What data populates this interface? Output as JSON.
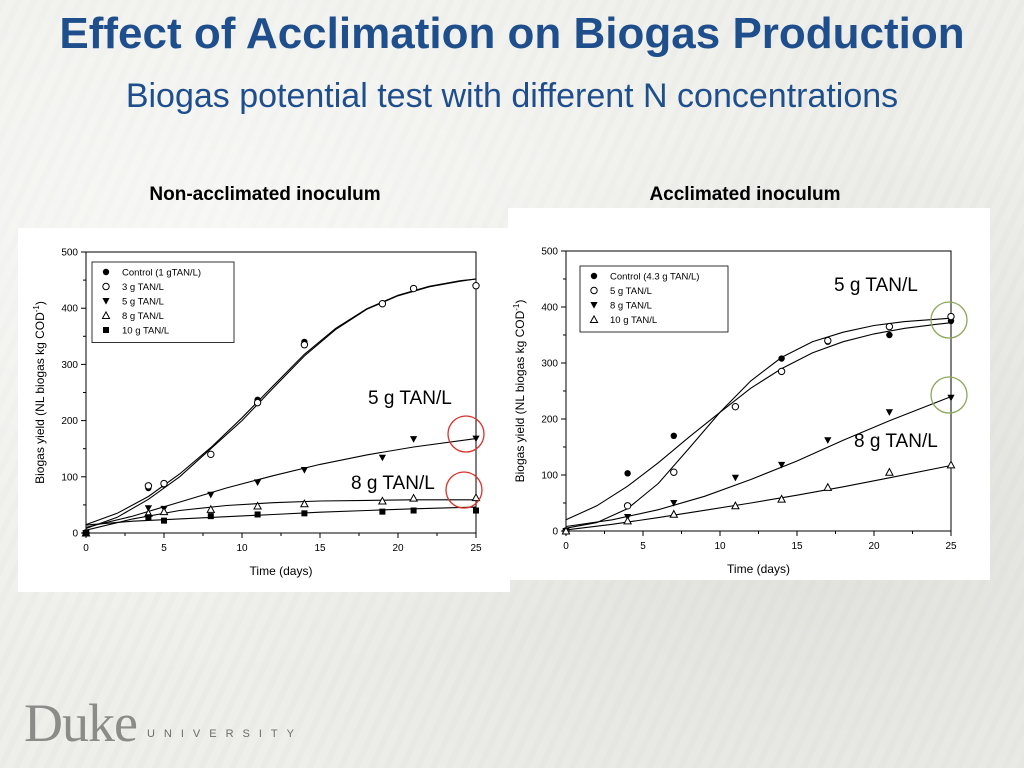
{
  "slide": {
    "title": "Effect of Acclimation on Biogas Production",
    "subtitle": "Biogas potential test with different N concentrations",
    "logo": {
      "word": "Duke",
      "sub": "UNIVERSITY"
    }
  },
  "chart_data": [
    {
      "type": "scatter",
      "heading": "Non-acclimated inoculum",
      "xlabel": "Time (days)",
      "ylabel": "Biogas yield (NL biogas kg COD",
      "ylabel_sup": "-1",
      "ylabel_close": ")",
      "xlim": [
        0,
        25
      ],
      "ylim": [
        0,
        500
      ],
      "xticks": [
        0,
        5,
        10,
        15,
        20,
        25
      ],
      "yticks": [
        0,
        100,
        200,
        300,
        400,
        500
      ],
      "legend_position": "top-left",
      "series": [
        {
          "name": "Control (1 gTAN/L)",
          "marker": "filled-circle",
          "x": [
            0,
            4,
            5,
            8,
            11,
            14,
            19,
            21,
            25
          ],
          "y": [
            0,
            80,
            86,
            140,
            237,
            340,
            408,
            435,
            440
          ],
          "curve": [
            [
              0,
              8
            ],
            [
              2,
              28
            ],
            [
              4,
              60
            ],
            [
              6,
              100
            ],
            [
              8,
              150
            ],
            [
              10,
              200
            ],
            [
              12,
              258
            ],
            [
              14,
              315
            ],
            [
              16,
              362
            ],
            [
              18,
              398
            ],
            [
              20,
              422
            ],
            [
              22,
              438
            ],
            [
              24,
              448
            ],
            [
              25,
              452
            ]
          ]
        },
        {
          "name": "3 g TAN/L",
          "marker": "open-circle",
          "x": [
            0,
            4,
            5,
            8,
            11,
            14,
            19,
            21,
            25
          ],
          "y": [
            0,
            84,
            88,
            140,
            232,
            335,
            408,
            435,
            440
          ],
          "curve": [
            [
              0,
              15
            ],
            [
              2,
              35
            ],
            [
              4,
              65
            ],
            [
              6,
              105
            ],
            [
              8,
              152
            ],
            [
              10,
              205
            ],
            [
              12,
              262
            ],
            [
              14,
              318
            ],
            [
              16,
              364
            ],
            [
              18,
              399
            ],
            [
              20,
              423
            ],
            [
              22,
              439
            ],
            [
              24,
              449
            ],
            [
              25,
              452
            ]
          ]
        },
        {
          "name": "5 g TAN/L",
          "marker": "filled-triangle-down",
          "x": [
            0,
            4,
            5,
            8,
            11,
            14,
            19,
            21,
            25
          ],
          "y": [
            0,
            44,
            43,
            68,
            90,
            112,
            134,
            167,
            168
          ],
          "curve": [
            [
              0,
              10
            ],
            [
              3,
              30
            ],
            [
              6,
              55
            ],
            [
              9,
              80
            ],
            [
              12,
              102
            ],
            [
              15,
              122
            ],
            [
              18,
              139
            ],
            [
              21,
              153
            ],
            [
              25,
              168
            ]
          ]
        },
        {
          "name": "8 g TAN/L",
          "marker": "open-triangle-up",
          "x": [
            0,
            4,
            5,
            8,
            11,
            14,
            19,
            21,
            25
          ],
          "y": [
            0,
            35,
            38,
            42,
            48,
            52,
            57,
            62,
            63
          ],
          "curve": [
            [
              0,
              5
            ],
            [
              3,
              25
            ],
            [
              6,
              40
            ],
            [
              9,
              49
            ],
            [
              12,
              54
            ],
            [
              15,
              57
            ],
            [
              18,
              58
            ],
            [
              21,
              59
            ],
            [
              25,
              59
            ]
          ]
        },
        {
          "name": "10 g TAN/L",
          "marker": "filled-square",
          "x": [
            0,
            4,
            5,
            8,
            11,
            14,
            19,
            21,
            25
          ],
          "y": [
            0,
            28,
            22,
            30,
            33,
            35,
            38,
            40,
            40
          ],
          "curve": [
            [
              0,
              14
            ],
            [
              3,
              21
            ],
            [
              6,
              25
            ],
            [
              9,
              29
            ],
            [
              12,
              33
            ],
            [
              15,
              37
            ],
            [
              18,
              40
            ],
            [
              21,
              43
            ],
            [
              25,
              46
            ]
          ]
        }
      ],
      "annotations": [
        {
          "text": "5 g TAN/L"
        },
        {
          "text": "8 g TAN/L"
        }
      ],
      "highlight_color": "#d9312b"
    },
    {
      "type": "scatter",
      "heading": "Acclimated inoculum",
      "xlabel": "Time (days)",
      "ylabel": "Biogas yield (NL biogas kg COD",
      "ylabel_sup": "-1",
      "ylabel_close": ")",
      "xlim": [
        0,
        25
      ],
      "ylim": [
        0,
        500
      ],
      "xticks": [
        0,
        5,
        10,
        15,
        20,
        25
      ],
      "yticks": [
        0,
        100,
        200,
        300,
        400,
        500
      ],
      "legend_position": "top-left",
      "series": [
        {
          "name": "Control (4.3 g TAN/L)",
          "marker": "filled-circle",
          "x": [
            0,
            4,
            7,
            14,
            17,
            21,
            25
          ],
          "y": [
            0,
            103,
            170,
            308,
            338,
            350,
            375
          ],
          "curve": [
            [
              0,
              20
            ],
            [
              2,
              45
            ],
            [
              4,
              80
            ],
            [
              6,
              122
            ],
            [
              8,
              168
            ],
            [
              10,
              212
            ],
            [
              12,
              255
            ],
            [
              14,
              290
            ],
            [
              16,
              318
            ],
            [
              18,
              338
            ],
            [
              20,
              352
            ],
            [
              22,
              362
            ],
            [
              24,
              369
            ],
            [
              25,
              372
            ]
          ]
        },
        {
          "name": "5 g TAN/L",
          "marker": "open-circle",
          "x": [
            0,
            4,
            7,
            11,
            14,
            17,
            21,
            25
          ],
          "y": [
            0,
            45,
            105,
            222,
            285,
            340,
            365,
            383
          ],
          "curve": [
            [
              0,
              5
            ],
            [
              2,
              15
            ],
            [
              4,
              40
            ],
            [
              6,
              85
            ],
            [
              8,
              148
            ],
            [
              10,
              212
            ],
            [
              12,
              268
            ],
            [
              14,
              310
            ],
            [
              16,
              338
            ],
            [
              18,
              355
            ],
            [
              20,
              367
            ],
            [
              22,
              374
            ],
            [
              24,
              378
            ],
            [
              25,
              380
            ]
          ]
        },
        {
          "name": "8 g TAN/L",
          "marker": "filled-triangle-down",
          "x": [
            0,
            4,
            7,
            11,
            14,
            17,
            21,
            25
          ],
          "y": [
            0,
            25,
            50,
            95,
            118,
            162,
            212,
            238
          ],
          "curve": [
            [
              0,
              8
            ],
            [
              3,
              20
            ],
            [
              6,
              38
            ],
            [
              9,
              62
            ],
            [
              12,
              92
            ],
            [
              15,
              125
            ],
            [
              18,
              162
            ],
            [
              21,
              197
            ],
            [
              25,
              240
            ]
          ]
        },
        {
          "name": "10 g TAN/L",
          "marker": "open-triangle-up",
          "x": [
            0,
            4,
            7,
            11,
            14,
            17,
            21,
            25
          ],
          "y": [
            0,
            18,
            30,
            45,
            57,
            78,
            105,
            118
          ],
          "curve": [
            [
              0,
              2
            ],
            [
              3,
              12
            ],
            [
              6,
              24
            ],
            [
              9,
              37
            ],
            [
              12,
              50
            ],
            [
              15,
              64
            ],
            [
              18,
              79
            ],
            [
              21,
              95
            ],
            [
              25,
              117
            ]
          ]
        }
      ],
      "annotations": [
        {
          "text": "5 g TAN/L"
        },
        {
          "text": "8 g TAN/L"
        }
      ],
      "highlight_color": "#8aa85a"
    }
  ]
}
